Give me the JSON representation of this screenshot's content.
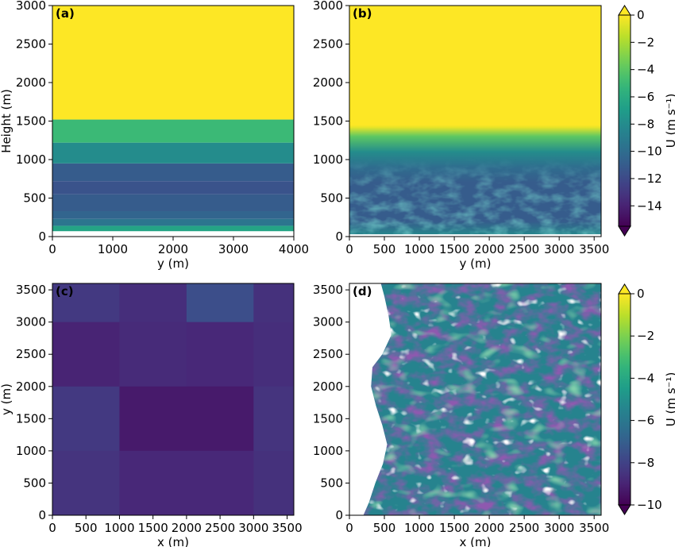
{
  "chart_data": [
    {
      "panel_label": "(a)",
      "type": "heatmap",
      "xlabel": "y (m)",
      "ylabel": "Height (m)",
      "xlim": [
        0,
        4000
      ],
      "ylim": [
        0,
        3000
      ],
      "xticks": [
        "0",
        "1000",
        "2000",
        "3000",
        "4000"
      ],
      "yticks": [
        "0",
        "500",
        "1000",
        "1500",
        "2000",
        "2500",
        "3000"
      ],
      "layers": [
        {
          "z": [
            0,
            70
          ],
          "u": null
        },
        {
          "z": [
            70,
            140
          ],
          "u": -6.5
        },
        {
          "z": [
            140,
            230
          ],
          "u": -9.5
        },
        {
          "z": [
            230,
            330
          ],
          "u": -10.5
        },
        {
          "z": [
            330,
            550
          ],
          "u": -11.0
        },
        {
          "z": [
            550,
            720
          ],
          "u": -11.5
        },
        {
          "z": [
            720,
            950
          ],
          "u": -11.0
        },
        {
          "z": [
            950,
            1220
          ],
          "u": -8.0
        },
        {
          "z": [
            1220,
            1520
          ],
          "u": -5.0
        },
        {
          "z": [
            1520,
            3000
          ],
          "u": 0.0
        }
      ],
      "colorbar": {
        "label": "U (m s⁻¹)",
        "ticks": [
          "0",
          "−2",
          "−4",
          "−6",
          "−8",
          "−10",
          "−12",
          "−14"
        ],
        "range": [
          -15.5,
          0
        ]
      }
    },
    {
      "panel_label": "(b)",
      "type": "heatmap",
      "xlabel": "y (m)",
      "ylabel": "",
      "xlim": [
        0,
        3600
      ],
      "ylim": [
        0,
        3000
      ],
      "xticks": [
        "0",
        "500",
        "1000",
        "1500",
        "2000",
        "2500",
        "3000",
        "3500"
      ],
      "yticks": [
        "0",
        "500",
        "1000",
        "1500",
        "2000",
        "2500",
        "3000"
      ],
      "profile": [
        {
          "z": 0,
          "u": -8
        },
        {
          "z": 200,
          "u": -11
        },
        {
          "z": 700,
          "u": -11
        },
        {
          "z": 900,
          "u": -10
        },
        {
          "z": 1100,
          "u": -8
        },
        {
          "z": 1300,
          "u": -4
        },
        {
          "z": 1420,
          "u": -0.5
        },
        {
          "z": 1450,
          "u": 0
        }
      ]
    },
    {
      "panel_label": "(c)",
      "type": "heatmap",
      "xlabel": "x (m)",
      "ylabel": "y (m)",
      "xlim": [
        0,
        3600
      ],
      "ylim": [
        0,
        3600
      ],
      "xticks": [
        "0",
        "500",
        "1000",
        "1500",
        "2000",
        "2500",
        "3000",
        "3500"
      ],
      "yticks": [
        "0",
        "500",
        "1000",
        "1500",
        "2000",
        "2500",
        "3000",
        "3500"
      ],
      "blocks": [
        {
          "x": [
            0,
            1000
          ],
          "y": [
            3000,
            3600
          ],
          "u": -8.3
        },
        {
          "x": [
            1000,
            2000
          ],
          "y": [
            3000,
            3600
          ],
          "u": -8.7
        },
        {
          "x": [
            2000,
            3000
          ],
          "y": [
            3000,
            3600
          ],
          "u": -7.6
        },
        {
          "x": [
            3000,
            3600
          ],
          "y": [
            3000,
            3600
          ],
          "u": -8.6
        },
        {
          "x": [
            0,
            1000
          ],
          "y": [
            2000,
            3000
          ],
          "u": -9.0
        },
        {
          "x": [
            1000,
            2000
          ],
          "y": [
            2000,
            3000
          ],
          "u": -8.8
        },
        {
          "x": [
            2000,
            3000
          ],
          "y": [
            2000,
            3000
          ],
          "u": -8.9
        },
        {
          "x": [
            3000,
            3600
          ],
          "y": [
            2000,
            3000
          ],
          "u": -8.7
        },
        {
          "x": [
            0,
            1000
          ],
          "y": [
            1000,
            2000
          ],
          "u": -8.3
        },
        {
          "x": [
            1000,
            2000
          ],
          "y": [
            1000,
            2000
          ],
          "u": -9.3
        },
        {
          "x": [
            2000,
            3000
          ],
          "y": [
            1000,
            2000
          ],
          "u": -9.3
        },
        {
          "x": [
            3000,
            3600
          ],
          "y": [
            1000,
            2000
          ],
          "u": -8.5
        },
        {
          "x": [
            0,
            1000
          ],
          "y": [
            0,
            1000
          ],
          "u": -8.5
        },
        {
          "x": [
            1000,
            2000
          ],
          "y": [
            0,
            1000
          ],
          "u": -8.9
        },
        {
          "x": [
            2000,
            3000
          ],
          "y": [
            0,
            1000
          ],
          "u": -8.9
        },
        {
          "x": [
            3000,
            3600
          ],
          "y": [
            0,
            1000
          ],
          "u": -8.6
        }
      ]
    },
    {
      "panel_label": "(d)",
      "type": "heatmap",
      "xlabel": "x (m)",
      "ylabel": "",
      "xlim": [
        0,
        3600
      ],
      "ylim": [
        0,
        3600
      ],
      "xticks": [
        "0",
        "500",
        "1000",
        "1500",
        "2000",
        "2500",
        "3000",
        "3500"
      ],
      "yticks": [
        "0",
        "500",
        "1000",
        "1500",
        "2000",
        "2500",
        "3000",
        "3500"
      ],
      "colorbar": {
        "label": "U (m s⁻¹)",
        "ticks": [
          "0",
          "−2",
          "−4",
          "−6",
          "−8",
          "−10"
        ],
        "range": [
          -10,
          0
        ]
      },
      "front": [
        {
          "y": 3600,
          "x": 450
        },
        {
          "y": 3400,
          "x": 500
        },
        {
          "y": 3100,
          "x": 560
        },
        {
          "y": 2800,
          "x": 600
        },
        {
          "y": 2500,
          "x": 470
        },
        {
          "y": 2300,
          "x": 330
        },
        {
          "y": 2000,
          "x": 310
        },
        {
          "y": 1700,
          "x": 380
        },
        {
          "y": 1400,
          "x": 470
        },
        {
          "y": 1100,
          "x": 540
        },
        {
          "y": 800,
          "x": 480
        },
        {
          "y": 500,
          "x": 370
        },
        {
          "y": 200,
          "x": 280
        },
        {
          "y": 0,
          "x": 200
        }
      ]
    }
  ],
  "colormap": [
    "#440154",
    "#482878",
    "#3e4989",
    "#31688e",
    "#26828e",
    "#1f9e89",
    "#35b779",
    "#6ece58",
    "#b5de2b",
    "#fde725"
  ]
}
